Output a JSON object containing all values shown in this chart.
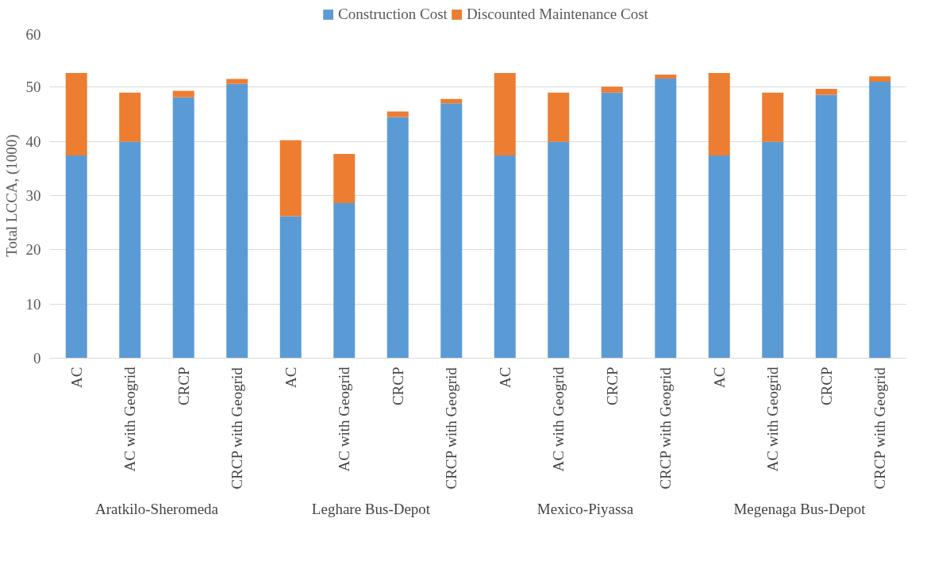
{
  "chart_data": {
    "type": "bar",
    "stacked": true,
    "ylabel": "Total LCCA, (1000)",
    "categories": [
      "AC",
      "AC with Geogrid",
      "CRCP",
      "CRCP with Geogrid",
      "AC",
      "AC with Geogrid",
      "CRCP",
      "CRCP with Geogrid",
      "AC",
      "AC with Geogrid",
      "CRCP",
      "CRCP with Geogrid",
      "AC",
      "AC with Geogrid",
      "CRCP",
      "CRCP with Geogrid"
    ],
    "series": [
      {
        "name": "Construction Cost",
        "color": "#5b9bd5",
        "values": [
          37.4,
          39.9,
          48.1,
          50.6,
          26.2,
          28.6,
          44.5,
          47.0,
          37.4,
          39.9,
          49.0,
          51.6,
          37.4,
          39.9,
          48.6,
          51.0
        ]
      },
      {
        "name": "Discounted Maintenance Cost",
        "color": "#ed7d31",
        "values": [
          15.2,
          9.1,
          1.2,
          0.9,
          14.0,
          9.1,
          1.0,
          0.8,
          15.2,
          9.1,
          1.1,
          0.7,
          15.2,
          9.1,
          1.1,
          1.0
        ]
      }
    ],
    "annotations": [
      "Aratkilo-Sheromeda",
      "Leghare Bus-Depot",
      "Mexico-Piyassa",
      "Megenaga Bus-Depot"
    ],
    "ylim": [
      0,
      60
    ],
    "yticks": [
      0,
      10,
      20,
      30,
      40,
      50,
      60
    ],
    "grid": "y",
    "legend": "top"
  }
}
